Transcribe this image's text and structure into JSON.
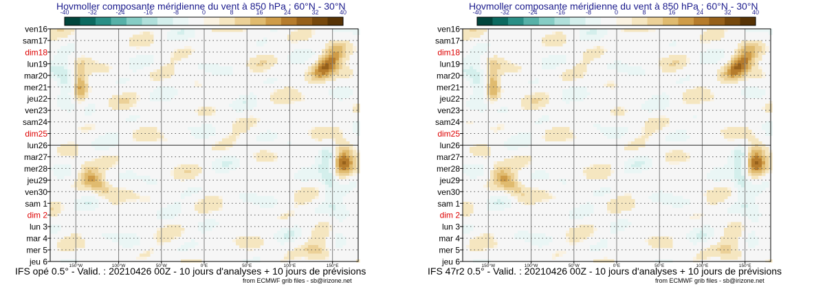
{
  "chart_data": [
    {
      "type": "heatmap",
      "title": "Hovmoller composante méridienne du vent à 850 hPa : 60°N - 30°N",
      "caption": "IFS opé 0.5° - Valid. : 20210426 00Z - 10 jours d'analyses + 10 jours de prévisions",
      "credit": "from ECMWF grib files - sb@irizone.net",
      "colorbar_ticks": [
        "-40",
        "-32",
        "-24",
        "-16",
        "-8",
        "0",
        "8",
        "16",
        "24",
        "32",
        "40"
      ],
      "colorbar_range": [
        -40,
        40
      ],
      "x_ticks": [
        "150°W",
        "100°W",
        "50°W",
        "0°E",
        "50°E",
        "100°E",
        "150°E"
      ],
      "x_tick_lons": [
        -150,
        -100,
        -50,
        0,
        50,
        100,
        150
      ],
      "xlim": [
        -180,
        180
      ],
      "y_labels": [
        "ven16",
        "sam17",
        "dim18",
        "lun19",
        "mar20",
        "mer21",
        "jeu22",
        "ven23",
        "sam24",
        "dim25",
        "lun26",
        "mar27",
        "mer28",
        "jeu29",
        "ven30",
        "sam 1",
        "dim 2",
        "lun 3",
        "mar 4",
        "mer 5",
        "jeu 6"
      ],
      "y_weekend": [
        "dim18",
        "dim25",
        "dim 2"
      ],
      "analysis_forecast_split": "lun26"
    },
    {
      "type": "heatmap",
      "title": "Hovmoller composante méridienne du vent à 850 hPa : 60°N - 30°N",
      "caption": "IFS 47r2 0.5° - Valid. : 20210426 00Z - 10 jours d'analyses + 10 jours de prévisions",
      "credit": "from ECMWF grib files - sb@irizone.net",
      "colorbar_ticks": [
        "-40",
        "-32",
        "-24",
        "-16",
        "-8",
        "0",
        "8",
        "16",
        "24",
        "32",
        "40"
      ],
      "colorbar_range": [
        -40,
        40
      ],
      "x_ticks": [
        "150°W",
        "100°W",
        "50°W",
        "0°E",
        "50°E",
        "100°E",
        "150°E"
      ],
      "x_tick_lons": [
        -150,
        -100,
        -50,
        0,
        50,
        100,
        150
      ],
      "xlim": [
        -180,
        180
      ],
      "y_labels": [
        "ven16",
        "sam17",
        "dim18",
        "lun19",
        "mar20",
        "mer21",
        "jeu22",
        "ven23",
        "sam24",
        "dim25",
        "lun26",
        "mar27",
        "mer28",
        "jeu29",
        "ven30",
        "sam 1",
        "dim 2",
        "lun 3",
        "mar 4",
        "mer 5",
        "jeu 6"
      ],
      "y_weekend": [
        "dim18",
        "dim25",
        "dim 2"
      ],
      "analysis_forecast_split": "lun26"
    }
  ],
  "colors": {
    "title": "#1a1a8c",
    "weekend": "#dd0000",
    "palette": [
      "#01453c",
      "#0c6a60",
      "#2a8f86",
      "#57b1a8",
      "#86cdc5",
      "#b0e0db",
      "#d4efec",
      "#eaf6f5",
      "#f6f6f6",
      "#faf2e1",
      "#f5e6c0",
      "#ecd198",
      "#e0bb6f",
      "#cf9c48",
      "#b67c2c",
      "#96601a",
      "#76480c",
      "#573305"
    ]
  }
}
